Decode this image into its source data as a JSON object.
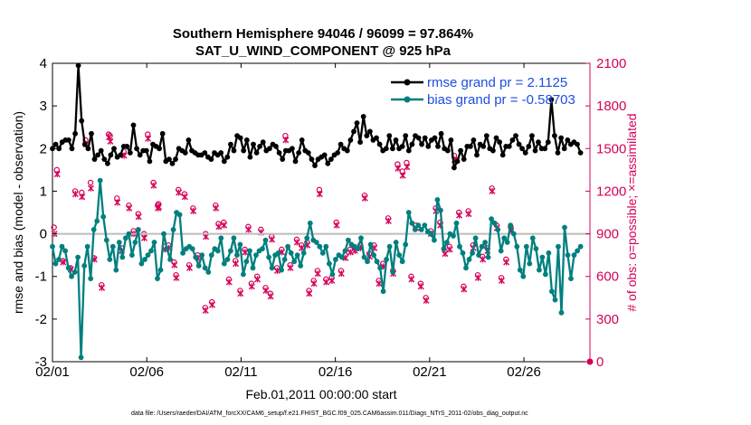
{
  "chart_data": {
    "type": "line",
    "title": "Southern Hemisphere 94046 / 96099 = 97.864%",
    "subtitle": "SAT_U_WIND_COMPONENT @ 925 hPa",
    "xlabel": "Feb.01,2011 00:00:00 start",
    "ylabel": "rmse and bias (model - observation)",
    "ylabel_right": "# of obs: o=possible; ×=assimilated",
    "footer": "data file: /Users/raeder/DAI/ATM_forcXX/CAM6_setup/f.e21.FHIST_BGC.f09_025.CAM6assim.011/Diags_NTrS_2011-02/obs_diag_output.nc",
    "x_ticks": [
      "02/01",
      "02/06",
      "02/11",
      "02/16",
      "02/21",
      "02/26"
    ],
    "x_tick_days": [
      0,
      5,
      10,
      15,
      20,
      25
    ],
    "xlim_days": [
      0,
      28.5
    ],
    "ylim": [
      -3,
      4
    ],
    "y_ticks": [
      "-3",
      "-2",
      "-1",
      "0",
      "1",
      "2",
      "3",
      "4"
    ],
    "y_tick_values": [
      -3,
      -2,
      -1,
      0,
      1,
      2,
      3,
      4
    ],
    "ylim_right": [
      0,
      2100
    ],
    "y_ticks_right": [
      "0",
      "300",
      "600",
      "900",
      "1200",
      "1500",
      "1800",
      "2100"
    ],
    "y_tick_values_right": [
      0,
      300,
      600,
      900,
      1200,
      1500,
      1800,
      2100
    ],
    "zero_line": 0,
    "legend_position": "top-right",
    "colors": {
      "rmse": "#000000",
      "bias": "#007f7f",
      "obs": "#d6005a",
      "zero": "#bdbdbd",
      "legend_text": "#1f4fe0"
    },
    "series": [
      {
        "name": "rmse grand pr = 2.1125",
        "values": [
          2.0,
          2.1,
          2.0,
          2.15,
          2.2,
          2.2,
          2.0,
          2.35,
          3.95,
          2.65,
          2.1,
          2.0,
          2.35,
          1.75,
          1.85,
          1.95,
          1.75,
          1.65,
          1.85,
          2.0,
          1.8,
          1.85,
          2.05,
          2.05,
          1.9,
          2.55,
          2.0,
          1.85,
          1.95,
          1.95,
          1.7,
          2.1,
          2.05,
          2.0,
          2.35,
          1.7,
          1.75,
          1.65,
          1.75,
          2.0,
          1.95,
          1.9,
          2.2,
          1.95,
          1.9,
          1.85,
          1.85,
          1.9,
          1.8,
          1.75,
          1.9,
          1.85,
          1.9,
          1.7,
          1.8,
          2.1,
          1.95,
          2.3,
          2.25,
          1.95,
          2.2,
          1.8,
          2.1,
          1.9,
          2.05,
          2.15,
          1.95,
          2.0,
          2.1,
          2.05,
          1.9,
          1.75,
          1.95,
          1.95,
          2.0,
          1.7,
          1.9,
          2.2,
          1.95,
          1.9,
          1.75,
          1.6,
          1.75,
          1.8,
          1.85,
          1.65,
          1.75,
          1.85,
          1.9,
          2.1,
          2.0,
          1.95,
          2.2,
          2.4,
          2.6,
          2.15,
          2.75,
          2.3,
          2.4,
          2.2,
          2.25,
          2.1,
          1.95,
          2.0,
          2.3,
          2.0,
          2.2,
          2.0,
          2.05,
          2.3,
          1.95,
          2.1,
          2.3,
          2.25,
          2.1,
          2.25,
          2.05,
          2.2,
          2.25,
          2.05,
          2.35,
          2.0,
          1.95,
          2.2,
          1.55,
          1.7,
          1.95,
          1.75,
          2.05,
          2.05,
          2.2,
          1.85,
          2.1,
          2.05,
          2.3,
          2.0,
          1.95,
          2.25,
          2.15,
          1.85,
          2.05,
          2.05,
          2.2,
          2.3,
          2.1,
          2.0,
          1.9,
          2.05,
          2.3,
          1.95,
          2.15,
          2.0,
          2.0,
          2.15,
          3.15,
          2.3,
          1.9,
          2.25,
          2.0,
          2.2,
          2.1,
          2.15,
          2.1,
          1.9
        ]
      },
      {
        "name": "bias grand pr = -0.58703",
        "values": [
          -0.3,
          -0.7,
          -0.6,
          -0.3,
          -0.4,
          -0.8,
          -1.0,
          -0.9,
          -0.55,
          -2.9,
          -0.75,
          -0.3,
          -1.05,
          0.1,
          0.3,
          1.25,
          0.4,
          -0.15,
          -0.6,
          -0.3,
          -0.85,
          -0.2,
          -0.55,
          -0.1,
          0.0,
          -0.5,
          -0.2,
          0.1,
          -0.7,
          -0.6,
          -0.5,
          -0.4,
          -0.2,
          -1.05,
          -0.85,
          0.0,
          -0.35,
          -0.6,
          0.1,
          0.5,
          0.45,
          -0.45,
          -0.35,
          -0.3,
          -0.35,
          -0.55,
          -0.75,
          -0.5,
          -0.8,
          -0.9,
          -0.5,
          -0.35,
          -0.4,
          -0.1,
          -0.7,
          -0.6,
          -0.4,
          -0.1,
          -0.5,
          -0.25,
          -0.95,
          -0.65,
          -0.4,
          -0.8,
          -0.5,
          -0.4,
          -0.35,
          -0.15,
          -0.55,
          -0.8,
          -0.5,
          -0.45,
          -0.85,
          -0.6,
          -0.3,
          -0.45,
          -0.65,
          -0.5,
          -0.75,
          -0.45,
          -0.1,
          0.25,
          -0.15,
          -0.2,
          -0.3,
          -0.45,
          -0.3,
          -0.7,
          -0.95,
          -0.6,
          -0.5,
          -0.55,
          -0.4,
          -0.15,
          -0.25,
          -0.3,
          -0.35,
          -0.1,
          -0.55,
          -0.65,
          -0.25,
          -0.5,
          -0.65,
          -0.8,
          -1.35,
          -0.6,
          -0.3,
          -0.9,
          -0.2,
          -0.5,
          -0.65,
          -0.25,
          0.5,
          0.25,
          0.1,
          0.2,
          0.1,
          0.2,
          0.05,
          0.0,
          -0.15,
          0.8,
          0.55,
          -0.35,
          -0.2,
          0.0,
          -0.05,
          0.25,
          -0.3,
          -0.45,
          -0.8,
          -0.6,
          -0.45,
          -0.1,
          -0.5,
          -0.3,
          -0.2,
          -0.55,
          0.35,
          0.25,
          0.1,
          -0.4,
          -0.1,
          -0.2,
          0.2,
          0.0,
          -0.3,
          -0.85,
          -1.0,
          -0.3,
          -0.7,
          -0.1,
          -0.35,
          -0.85,
          -0.55,
          -0.95,
          -0.45,
          -1.35,
          -1.55,
          -0.3,
          -1.85,
          0.15,
          -0.5,
          -1.05,
          -0.5,
          -0.4,
          -0.3
        ]
      }
    ],
    "obs_possible": [
      945,
      1350,
      710,
      660,
      1200,
      1190,
      1560,
      1260,
      730,
      540,
      1600,
      1590,
      1150,
      800,
      1480,
      1100,
      920,
      1040,
      900,
      1600,
      1260,
      1100,
      1110,
      810,
      820,
      700,
      610,
      1210,
      1180,
      680,
      1080,
      750,
      380,
      900,
      420,
      1100,
      970,
      980,
      580,
      710,
      500,
      790,
      950,
      550,
      600,
      930,
      520,
      480,
      880,
      660,
      790,
      1590,
      680,
      860,
      820,
      840,
      500,
      570,
      640,
      1210,
      580,
      590,
      980,
      640,
      750,
      790,
      800,
      820,
      1170,
      760,
      820,
      570,
      690,
      1010,
      640,
      1390,
      1340,
      1400,
      600,
      960,
      550,
      450,
      920,
      1080,
      980,
      780,
      810,
      1450,
      1050,
      530,
      1060,
      820,
      610,
      740,
      800,
      1220,
      960,
      590,
      720,
      950
    ],
    "obs_possible_days": [
      0.08,
      0.23,
      0.55,
      0.95,
      1.2,
      1.55,
      1.75,
      2.02,
      2.2,
      2.6,
      2.98,
      3.05,
      3.42,
      3.65,
      3.78,
      4.05,
      4.3,
      4.55,
      4.85,
      5.05,
      5.35,
      5.58,
      5.62,
      5.95,
      6.15,
      6.45,
      6.55,
      6.68,
      7.0,
      7.25,
      7.45,
      7.7,
      8.1,
      8.12,
      8.45,
      8.65,
      8.8,
      9.08,
      9.35,
      9.7,
      9.95,
      10.2,
      10.38,
      10.55,
      10.85,
      11.05,
      11.3,
      11.55,
      11.62,
      11.9,
      12.15,
      12.35,
      12.6,
      12.95,
      13.2,
      13.5,
      13.6,
      13.85,
      14.05,
      14.15,
      14.5,
      14.8,
      15.05,
      15.3,
      15.52,
      15.78,
      16.02,
      16.32,
      16.55,
      16.8,
      17.05,
      17.3,
      17.52,
      17.8,
      18.05,
      18.3,
      18.55,
      18.78,
      19.02,
      19.28,
      19.52,
      19.8,
      20.05,
      20.32,
      20.55,
      20.8,
      21.05,
      21.3,
      21.55,
      21.8,
      22.05,
      22.3,
      22.55,
      22.8,
      23.05,
      23.3,
      23.55,
      23.8,
      24.05,
      24.3
    ],
    "obs_assimilated": [
      900,
      1320,
      700,
      650,
      1180,
      1160,
      1530,
      1220,
      720,
      520,
      1580,
      1550,
      1120,
      780,
      1450,
      1080,
      900,
      1020,
      870,
      1570,
      1240,
      1080,
      1090,
      790,
      800,
      680,
      590,
      1190,
      1160,
      660,
      1060,
      730,
      360,
      880,
      400,
      1080,
      950,
      960,
      560,
      690,
      480,
      770,
      930,
      530,
      580,
      910,
      500,
      460,
      860,
      640,
      770,
      1560,
      660,
      840,
      800,
      820,
      480,
      550,
      620,
      1180,
      560,
      570,
      960,
      620,
      730,
      770,
      780,
      800,
      1150,
      740,
      800,
      550,
      670,
      990,
      620,
      1360,
      1310,
      1370,
      580,
      940,
      530,
      430,
      900,
      1060,
      960,
      760,
      790,
      1420,
      1030,
      510,
      1040,
      800,
      590,
      720,
      780,
      1200,
      940,
      570,
      700,
      920
    ],
    "obs_assimilated_days": [
      0.1,
      0.25,
      0.57,
      0.97,
      1.22,
      1.57,
      1.77,
      2.04,
      2.22,
      2.62,
      3.0,
      3.07,
      3.44,
      3.67,
      3.8,
      4.07,
      4.32,
      4.57,
      4.87,
      5.07,
      5.37,
      5.6,
      5.64,
      5.97,
      6.17,
      6.47,
      6.57,
      6.7,
      7.02,
      7.27,
      7.47,
      7.72,
      8.12,
      8.14,
      8.47,
      8.67,
      8.82,
      9.1,
      9.37,
      9.72,
      9.97,
      10.22,
      10.4,
      10.57,
      10.87,
      11.07,
      11.32,
      11.57,
      11.64,
      11.92,
      12.17,
      12.37,
      12.62,
      12.97,
      13.22,
      13.52,
      13.62,
      13.87,
      14.07,
      14.17,
      14.52,
      14.82,
      15.07,
      15.32,
      15.54,
      15.8,
      16.04,
      16.34,
      16.57,
      16.82,
      17.07,
      17.32,
      17.54,
      17.82,
      18.07,
      18.32,
      18.57,
      18.8,
      19.04,
      19.3,
      19.54,
      19.82,
      20.07,
      20.34,
      20.57,
      20.82,
      21.07,
      21.32,
      21.57,
      21.82,
      22.07,
      22.32,
      22.57,
      22.82,
      23.07,
      23.32,
      23.57,
      23.82,
      24.07,
      24.32
    ]
  }
}
